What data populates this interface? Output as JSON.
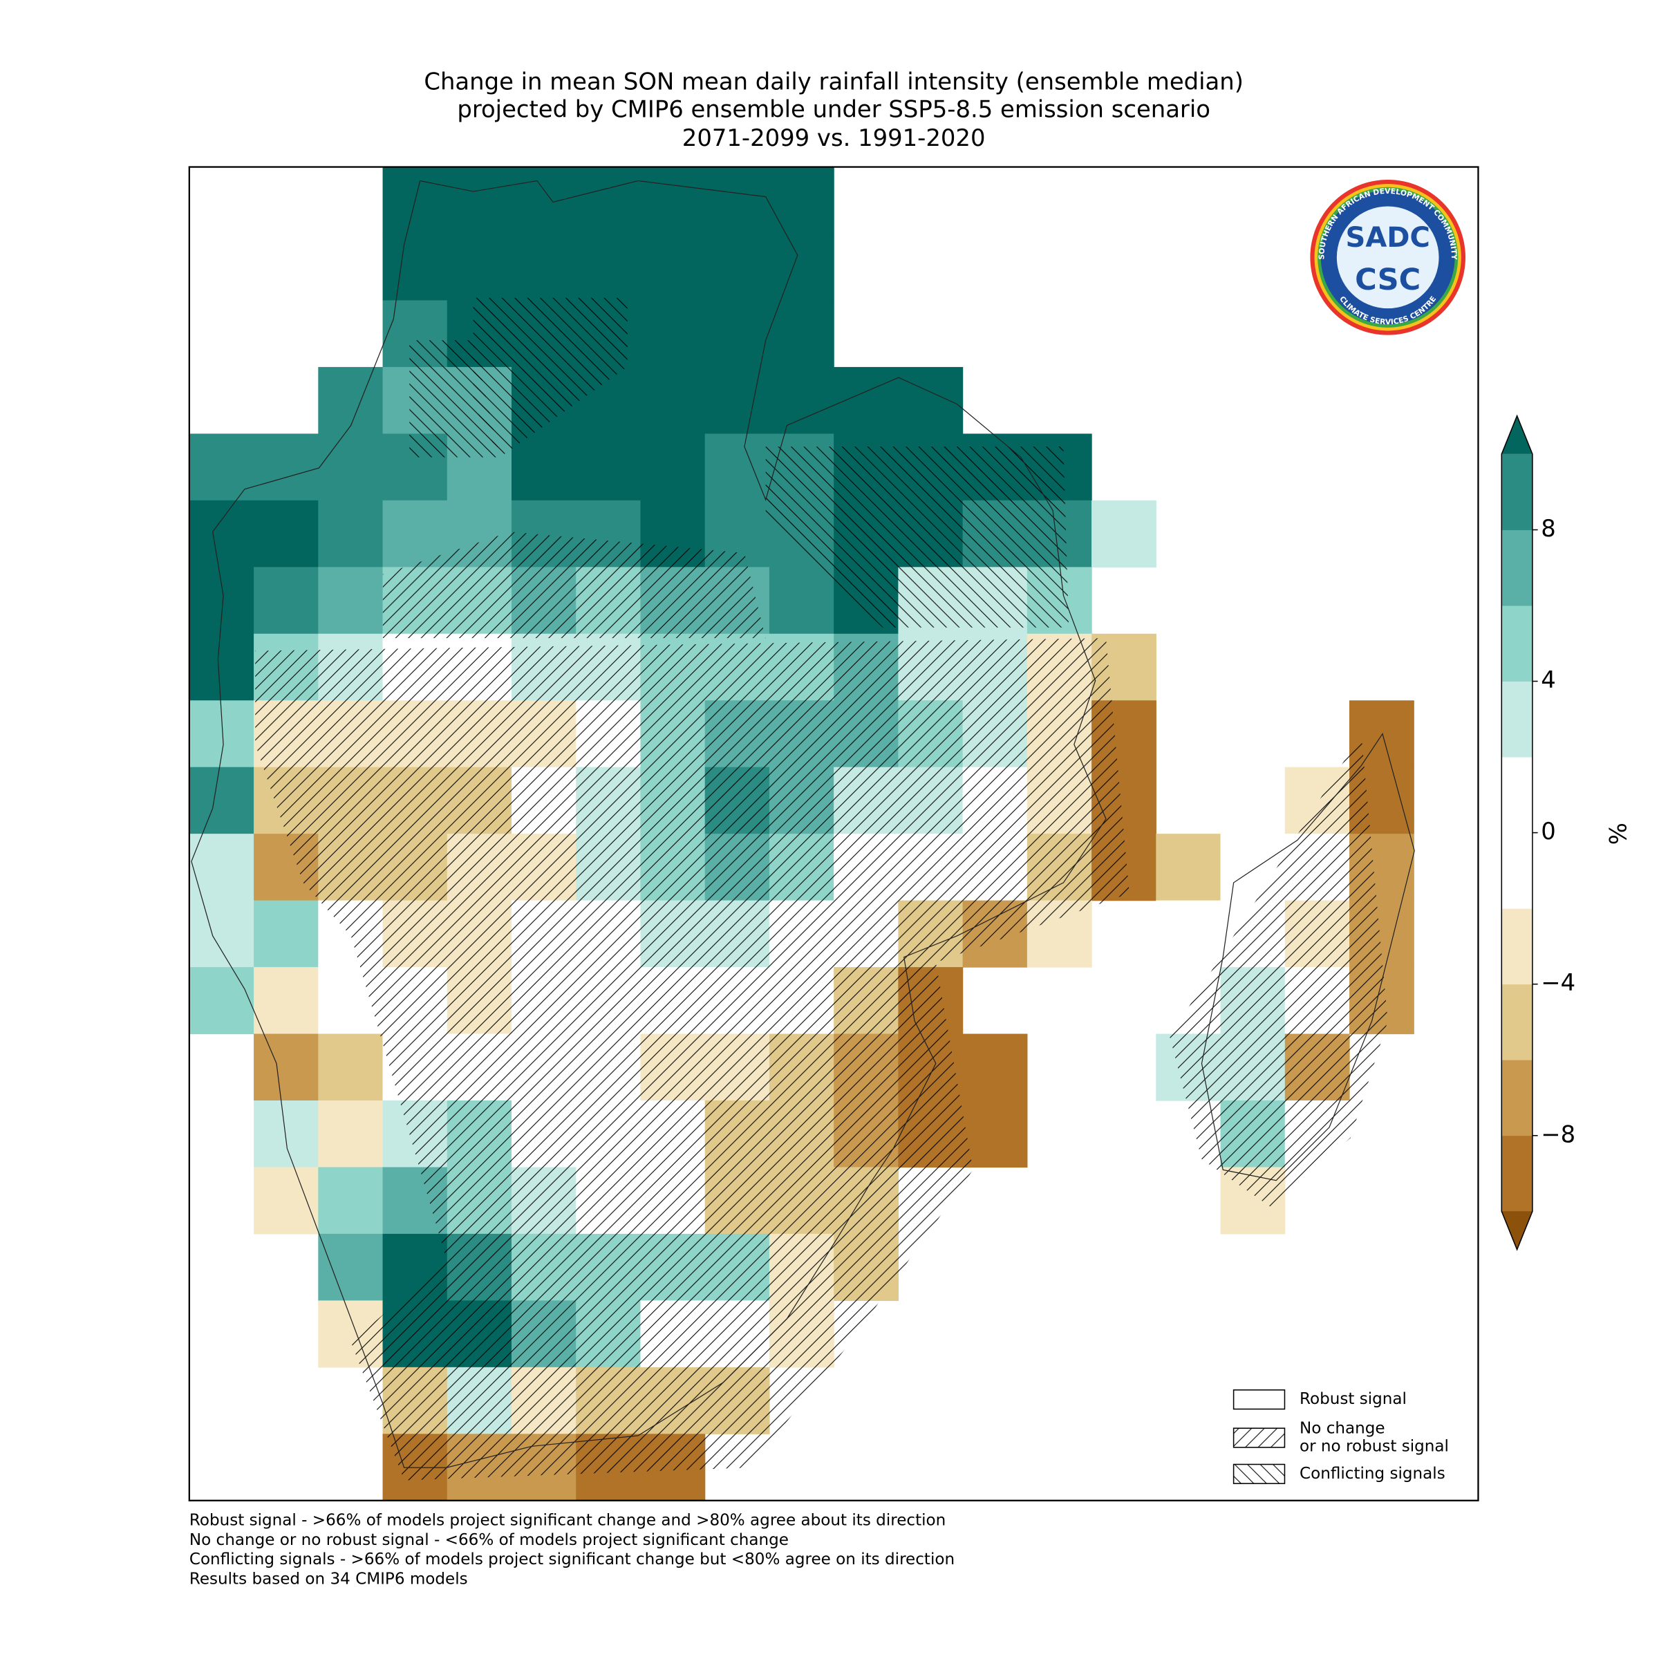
{
  "chart_data": {
    "type": "grid-map",
    "title": [
      "Change in mean SON mean daily rainfall intensity (ensemble median)",
      "projected by CMIP6 ensemble under SSP5-8.5 emission scenario",
      "2071-2099 vs. 1991-2020"
    ],
    "grid": [
      [
        null,
        null,
        null,
        11,
        11,
        11,
        11,
        11,
        11,
        11,
        null,
        null,
        null,
        null,
        null,
        null,
        null,
        null,
        null,
        null
      ],
      [
        null,
        null,
        null,
        11,
        11,
        11,
        11,
        11,
        11,
        11,
        null,
        null,
        null,
        null,
        null,
        null,
        null,
        null,
        null,
        null
      ],
      [
        null,
        null,
        null,
        9,
        11,
        11,
        11,
        11,
        11,
        11,
        null,
        null,
        null,
        null,
        null,
        null,
        null,
        null,
        null,
        null
      ],
      [
        null,
        null,
        9,
        7,
        7,
        11,
        11,
        11,
        11,
        11,
        11,
        11,
        null,
        null,
        null,
        null,
        null,
        null,
        null,
        null
      ],
      [
        9,
        9,
        9,
        9,
        7,
        11,
        11,
        11,
        9,
        9,
        11,
        11,
        11,
        11,
        null,
        null,
        null,
        null,
        null,
        null
      ],
      [
        11,
        11,
        9,
        7,
        7,
        9,
        9,
        11,
        9,
        9,
        11,
        11,
        9,
        9,
        3,
        null,
        null,
        null,
        null,
        null
      ],
      [
        11,
        9,
        7,
        5,
        5,
        7,
        5,
        7,
        7,
        9,
        11,
        3,
        3,
        5,
        null,
        null,
        null,
        null,
        null,
        null
      ],
      [
        11,
        5,
        3,
        0,
        0,
        3,
        3,
        5,
        5,
        5,
        7,
        3,
        3,
        -3,
        -5,
        null,
        null,
        null,
        null,
        null
      ],
      [
        5,
        -3,
        -3,
        -3,
        -3,
        -3,
        0,
        5,
        7,
        7,
        7,
        5,
        3,
        -3,
        -9,
        null,
        null,
        null,
        -9,
        null
      ],
      [
        9,
        -5,
        -5,
        -5,
        -5,
        0,
        3,
        5,
        9,
        7,
        3,
        3,
        0,
        -3,
        -9,
        null,
        null,
        -3,
        -9,
        null
      ],
      [
        3,
        -7,
        -5,
        -5,
        -3,
        -3,
        3,
        5,
        7,
        5,
        0,
        0,
        0,
        -5,
        -9,
        -5,
        0,
        0,
        -7,
        null
      ],
      [
        3,
        5,
        0,
        -3,
        -3,
        0,
        0,
        3,
        3,
        0,
        0,
        -5,
        -7,
        -3,
        null,
        0,
        0,
        -3,
        -7,
        null
      ],
      [
        5,
        -3,
        0,
        0,
        -3,
        0,
        0,
        0,
        0,
        0,
        -5,
        -9,
        null,
        null,
        null,
        0,
        3,
        0,
        -7,
        null
      ],
      [
        null,
        -7,
        -5,
        0,
        0,
        0,
        0,
        -3,
        -3,
        -5,
        -7,
        -9,
        -9,
        null,
        null,
        3,
        3,
        -7,
        null,
        null
      ],
      [
        null,
        3,
        -3,
        3,
        5,
        0,
        0,
        0,
        -5,
        -5,
        -7,
        -9,
        -9,
        null,
        null,
        null,
        5,
        0,
        null,
        null
      ],
      [
        null,
        -3,
        5,
        7,
        5,
        3,
        0,
        0,
        -5,
        -5,
        -5,
        null,
        null,
        null,
        null,
        null,
        -3,
        null,
        null,
        null
      ],
      [
        null,
        null,
        7,
        11,
        9,
        5,
        5,
        5,
        5,
        -3,
        -5,
        null,
        null,
        null,
        null,
        null,
        null,
        null,
        null,
        null
      ],
      [
        null,
        null,
        -3,
        11,
        11,
        7,
        5,
        0,
        0,
        -3,
        null,
        null,
        null,
        null,
        null,
        null,
        null,
        null,
        null,
        null
      ],
      [
        null,
        null,
        null,
        -5,
        3,
        -3,
        -5,
        -5,
        -5,
        null,
        null,
        null,
        null,
        null,
        null,
        null,
        null,
        null,
        null,
        null
      ],
      [
        null,
        null,
        null,
        -9,
        -7,
        -7,
        -9,
        -9,
        null,
        null,
        null,
        null,
        null,
        null,
        null,
        null,
        null,
        null,
        null,
        null
      ]
    ],
    "colorbar": {
      "label": "%",
      "levels": [
        -10,
        -8,
        -6,
        -4,
        -2,
        2,
        4,
        6,
        8,
        10
      ],
      "colors": [
        "#8c510a",
        "#b07328",
        "#c9994f",
        "#e0c98a",
        "#f5e7c4",
        "#ffffff",
        "#c5eae4",
        "#8fd4c8",
        "#5ab0a6",
        "#2a8c82",
        "#03665e"
      ],
      "ticks": [
        8,
        4,
        0,
        {
          "value": -4,
          "label": "−4"
        },
        {
          "value": -8,
          "label": "−8"
        }
      ]
    },
    "legend": [
      {
        "label": [
          "Robust signal"
        ]
      },
      {
        "label": [
          "No change",
          "or no robust signal"
        ]
      },
      {
        "label": [
          "Conflicting signals"
        ]
      }
    ],
    "footnotes": [
      "Robust signal - >66% of models project significant change and >80% agree about its direction",
      "No change or no robust signal - <66% of models project significant change",
      "Conflicting signals - >66% of models project significant change but <80% agree on its direction",
      "Results based on 34 CMIP6 models"
    ],
    "logo": {
      "top": "SADC",
      "bottom": "CSC",
      "ring_top": "SOUTHERN AFRICAN DEVELOPMENT COMMUNITY",
      "ring_bottom": "CLIMATE SERVICES CENTRE"
    }
  }
}
